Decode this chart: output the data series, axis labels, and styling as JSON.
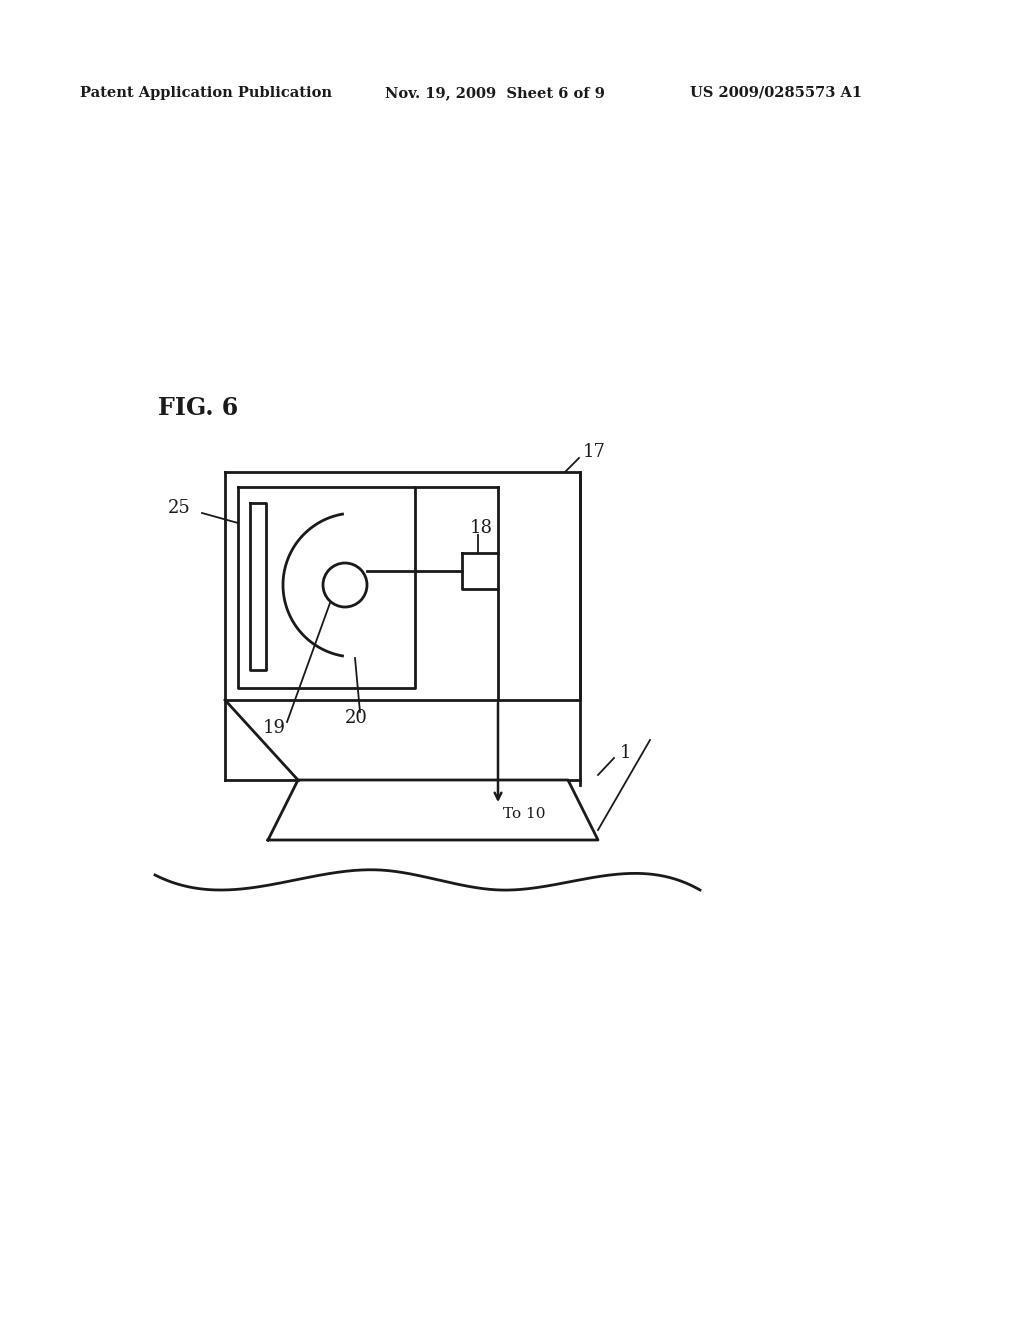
{
  "bg_color": "#ffffff",
  "line_color": "#1a1a1a",
  "header_left": "Patent Application Publication",
  "header_center": "Nov. 19, 2009  Sheet 6 of 9",
  "header_right": "US 2009/0285573 A1",
  "fig_label": "FIG. 6",
  "label_17": "17",
  "label_18": "18",
  "label_19": "19",
  "label_20": "20",
  "label_25": "25",
  "label_1": "1",
  "label_to10": "To 10"
}
